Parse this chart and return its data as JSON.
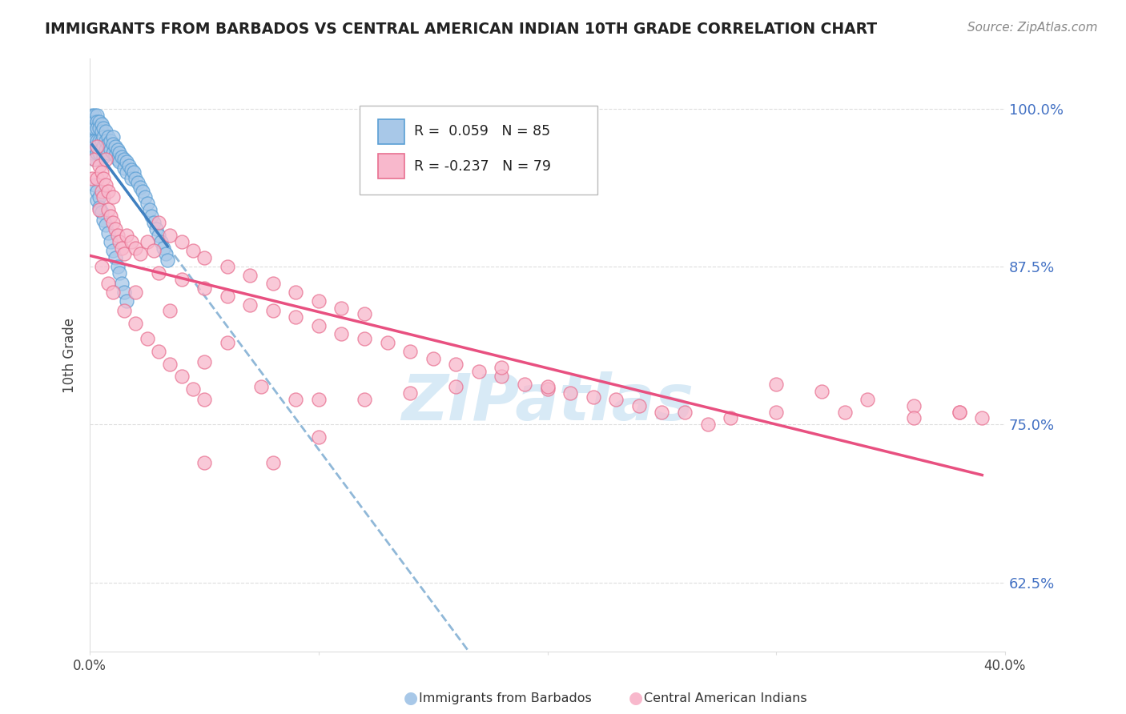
{
  "title": "IMMIGRANTS FROM BARBADOS VS CENTRAL AMERICAN INDIAN 10TH GRADE CORRELATION CHART",
  "source": "Source: ZipAtlas.com",
  "ylabel": "10th Grade",
  "y_ticks": [
    0.625,
    0.75,
    0.875,
    1.0
  ],
  "y_tick_labels": [
    "62.5%",
    "75.0%",
    "87.5%",
    "100.0%"
  ],
  "x_range": [
    0.0,
    0.4
  ],
  "y_range": [
    0.57,
    1.04
  ],
  "x_ticks": [
    0.0,
    0.4
  ],
  "x_tick_labels": [
    "0.0%",
    "40.0%"
  ],
  "legend_r1_text": "R =  0.059",
  "legend_n1_text": "N = 85",
  "legend_r2_text": "R = -0.237",
  "legend_n2_text": "N = 79",
  "blue_fill": "#a8c8e8",
  "blue_edge": "#5a9fd4",
  "pink_fill": "#f8b8cc",
  "pink_edge": "#e87090",
  "blue_line_color": "#4080c0",
  "pink_line_color": "#e85080",
  "blue_dash_color": "#90b8d8",
  "watermark_color": "#d8eaf6",
  "background_color": "#ffffff",
  "grid_color": "#dddddd",
  "title_color": "#222222",
  "source_color": "#888888",
  "right_tick_color": "#4472c4",
  "ylabel_color": "#444444",
  "blue_x": [
    0.001,
    0.001,
    0.001,
    0.001,
    0.002,
    0.002,
    0.002,
    0.002,
    0.002,
    0.002,
    0.003,
    0.003,
    0.003,
    0.003,
    0.003,
    0.004,
    0.004,
    0.004,
    0.004,
    0.005,
    0.005,
    0.005,
    0.005,
    0.006,
    0.006,
    0.006,
    0.006,
    0.007,
    0.007,
    0.007,
    0.008,
    0.008,
    0.008,
    0.009,
    0.009,
    0.01,
    0.01,
    0.01,
    0.011,
    0.011,
    0.012,
    0.012,
    0.013,
    0.013,
    0.014,
    0.015,
    0.015,
    0.016,
    0.016,
    0.017,
    0.018,
    0.018,
    0.019,
    0.02,
    0.021,
    0.022,
    0.023,
    0.024,
    0.025,
    0.026,
    0.027,
    0.028,
    0.029,
    0.03,
    0.031,
    0.032,
    0.033,
    0.034,
    0.002,
    0.003,
    0.003,
    0.004,
    0.004,
    0.005,
    0.006,
    0.007,
    0.008,
    0.009,
    0.01,
    0.011,
    0.012,
    0.013,
    0.014,
    0.015,
    0.016
  ],
  "blue_y": [
    0.995,
    0.985,
    0.975,
    0.965,
    0.995,
    0.99,
    0.985,
    0.975,
    0.97,
    0.96,
    0.995,
    0.99,
    0.985,
    0.975,
    0.965,
    0.99,
    0.985,
    0.975,
    0.965,
    0.988,
    0.982,
    0.975,
    0.968,
    0.985,
    0.978,
    0.97,
    0.962,
    0.982,
    0.975,
    0.968,
    0.978,
    0.972,
    0.965,
    0.975,
    0.968,
    0.978,
    0.972,
    0.965,
    0.97,
    0.963,
    0.968,
    0.96,
    0.965,
    0.958,
    0.962,
    0.96,
    0.953,
    0.958,
    0.95,
    0.955,
    0.952,
    0.945,
    0.95,
    0.945,
    0.942,
    0.938,
    0.935,
    0.93,
    0.925,
    0.92,
    0.915,
    0.91,
    0.905,
    0.9,
    0.895,
    0.89,
    0.885,
    0.88,
    0.94,
    0.935,
    0.928,
    0.93,
    0.922,
    0.918,
    0.912,
    0.908,
    0.902,
    0.895,
    0.888,
    0.882,
    0.875,
    0.87,
    0.862,
    0.855,
    0.848
  ],
  "pink_x": [
    0.001,
    0.002,
    0.003,
    0.003,
    0.004,
    0.004,
    0.005,
    0.005,
    0.006,
    0.006,
    0.007,
    0.007,
    0.008,
    0.008,
    0.009,
    0.01,
    0.01,
    0.011,
    0.012,
    0.013,
    0.014,
    0.015,
    0.016,
    0.018,
    0.02,
    0.022,
    0.025,
    0.028,
    0.03,
    0.035,
    0.04,
    0.045,
    0.05,
    0.06,
    0.07,
    0.08,
    0.09,
    0.1,
    0.11,
    0.12,
    0.03,
    0.04,
    0.05,
    0.06,
    0.07,
    0.08,
    0.09,
    0.1,
    0.11,
    0.12,
    0.13,
    0.14,
    0.15,
    0.16,
    0.17,
    0.18,
    0.19,
    0.2,
    0.22,
    0.24,
    0.26,
    0.28,
    0.3,
    0.32,
    0.34,
    0.36,
    0.38,
    0.39,
    0.005,
    0.008,
    0.01,
    0.015,
    0.02,
    0.025,
    0.03,
    0.035,
    0.04,
    0.045,
    0.05
  ],
  "pink_y": [
    0.945,
    0.96,
    0.945,
    0.97,
    0.955,
    0.92,
    0.95,
    0.935,
    0.945,
    0.93,
    0.96,
    0.94,
    0.935,
    0.92,
    0.915,
    0.93,
    0.91,
    0.905,
    0.9,
    0.895,
    0.89,
    0.885,
    0.9,
    0.895,
    0.89,
    0.885,
    0.895,
    0.888,
    0.91,
    0.9,
    0.895,
    0.888,
    0.882,
    0.875,
    0.868,
    0.862,
    0.855,
    0.848,
    0.842,
    0.838,
    0.87,
    0.865,
    0.858,
    0.852,
    0.845,
    0.84,
    0.835,
    0.828,
    0.822,
    0.818,
    0.815,
    0.808,
    0.802,
    0.798,
    0.792,
    0.788,
    0.782,
    0.778,
    0.772,
    0.765,
    0.76,
    0.755,
    0.782,
    0.776,
    0.77,
    0.765,
    0.76,
    0.755,
    0.875,
    0.862,
    0.855,
    0.84,
    0.83,
    0.818,
    0.808,
    0.798,
    0.788,
    0.778,
    0.77
  ],
  "pink_extra_x": [
    0.02,
    0.035,
    0.05,
    0.06,
    0.075,
    0.09,
    0.1,
    0.12,
    0.14,
    0.16,
    0.18,
    0.2,
    0.21,
    0.23,
    0.25,
    0.27,
    0.3,
    0.33,
    0.36,
    0.38,
    0.05,
    0.08,
    0.1
  ],
  "pink_extra_y": [
    0.855,
    0.84,
    0.8,
    0.815,
    0.78,
    0.77,
    0.77,
    0.77,
    0.775,
    0.78,
    0.795,
    0.78,
    0.775,
    0.77,
    0.76,
    0.75,
    0.76,
    0.76,
    0.755,
    0.76,
    0.72,
    0.72,
    0.74
  ]
}
